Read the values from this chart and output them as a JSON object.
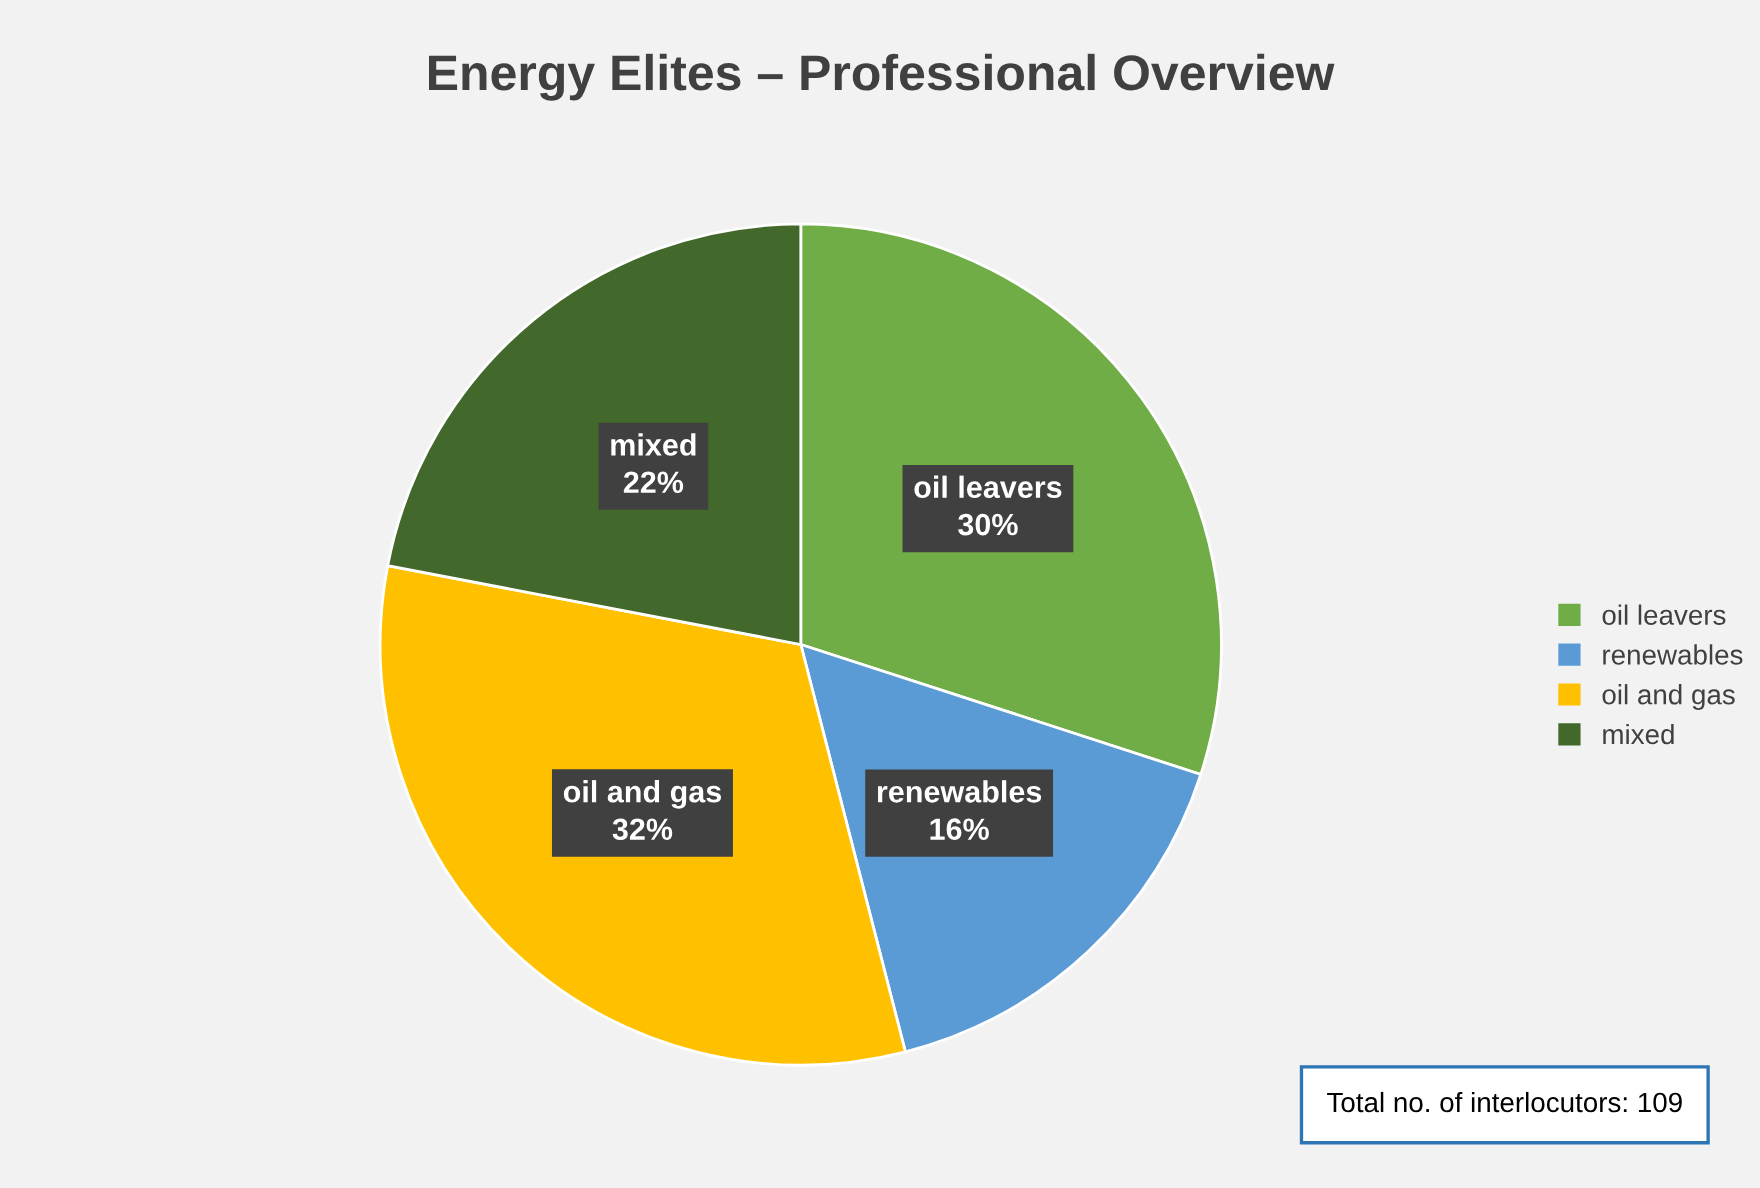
{
  "chart_data": {
    "type": "pie",
    "title": "Energy Elites – Professional Overview",
    "categories": [
      "oil leavers",
      "renewables",
      "oil and gas",
      "mixed"
    ],
    "values": [
      30,
      16,
      32,
      22
    ],
    "value_labels": [
      "30%",
      "16%",
      "32%",
      "22%"
    ],
    "colors": [
      "#70ad47",
      "#5b9bd5",
      "#ffc000",
      "#43682b"
    ],
    "legend": "right",
    "annotations": [
      "Total no. of interlocutors: 109"
    ]
  }
}
